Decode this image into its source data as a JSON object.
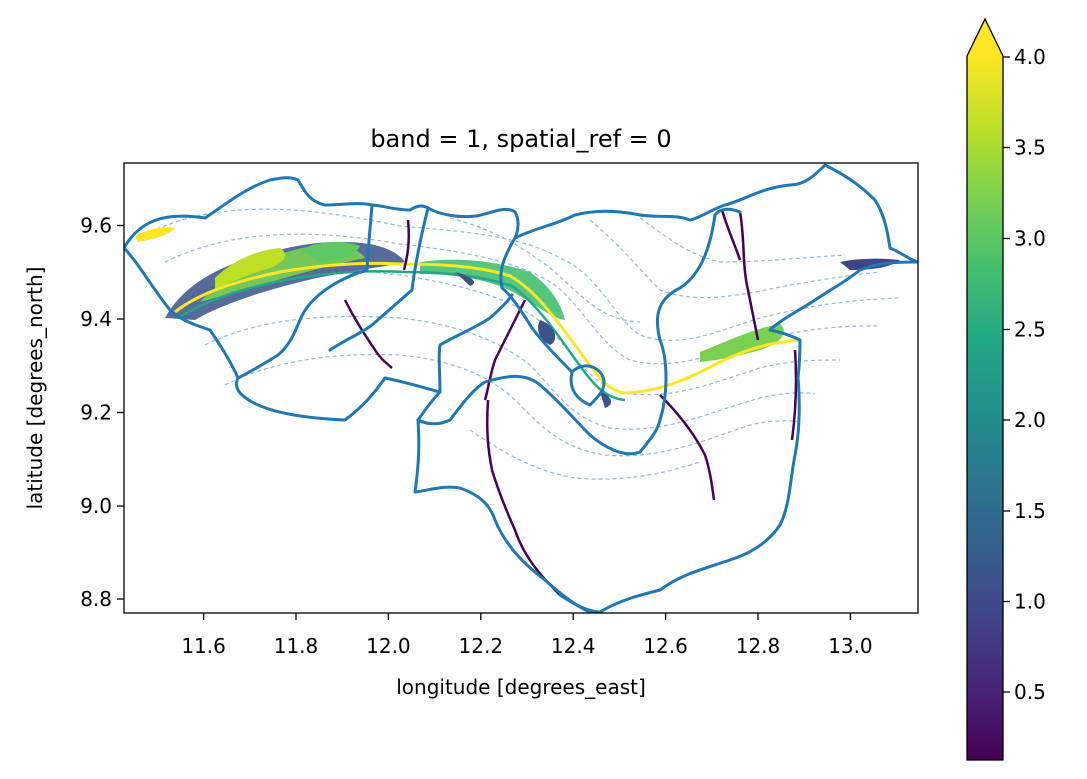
{
  "title": "band = 1, spatial_ref = 0",
  "xlabel": "longitude [degrees_east]",
  "ylabel": "latitude [degrees_north]",
  "x_ticks": [
    "11.6",
    "11.8",
    "12.0",
    "12.2",
    "12.4",
    "12.6",
    "12.8",
    "13.0"
  ],
  "y_ticks": [
    "8.8",
    "9.0",
    "9.2",
    "9.4",
    "9.6"
  ],
  "colorbar": {
    "colormap": "viridis",
    "extend": "max",
    "ticks": [
      "0.5",
      "1.0",
      "1.5",
      "2.0",
      "2.5",
      "3.0",
      "3.5",
      "4.0"
    ]
  },
  "colors": {
    "boundary": "#1f77b4",
    "contour": "#8fb8dc",
    "viridis_low": "#440154",
    "viridis_mid": "#21918c",
    "viridis_high": "#fde725"
  },
  "chart_data": {
    "type": "heatmap",
    "title": "band = 1, spatial_ref = 0",
    "xlabel": "longitude [degrees_east]",
    "ylabel": "latitude [degrees_north]",
    "xlim": [
      11.43,
      13.16
    ],
    "ylim": [
      8.77,
      9.73
    ],
    "value_range": [
      0.1,
      4.0
    ],
    "grid": false,
    "legend": "colorbar-right"
  }
}
